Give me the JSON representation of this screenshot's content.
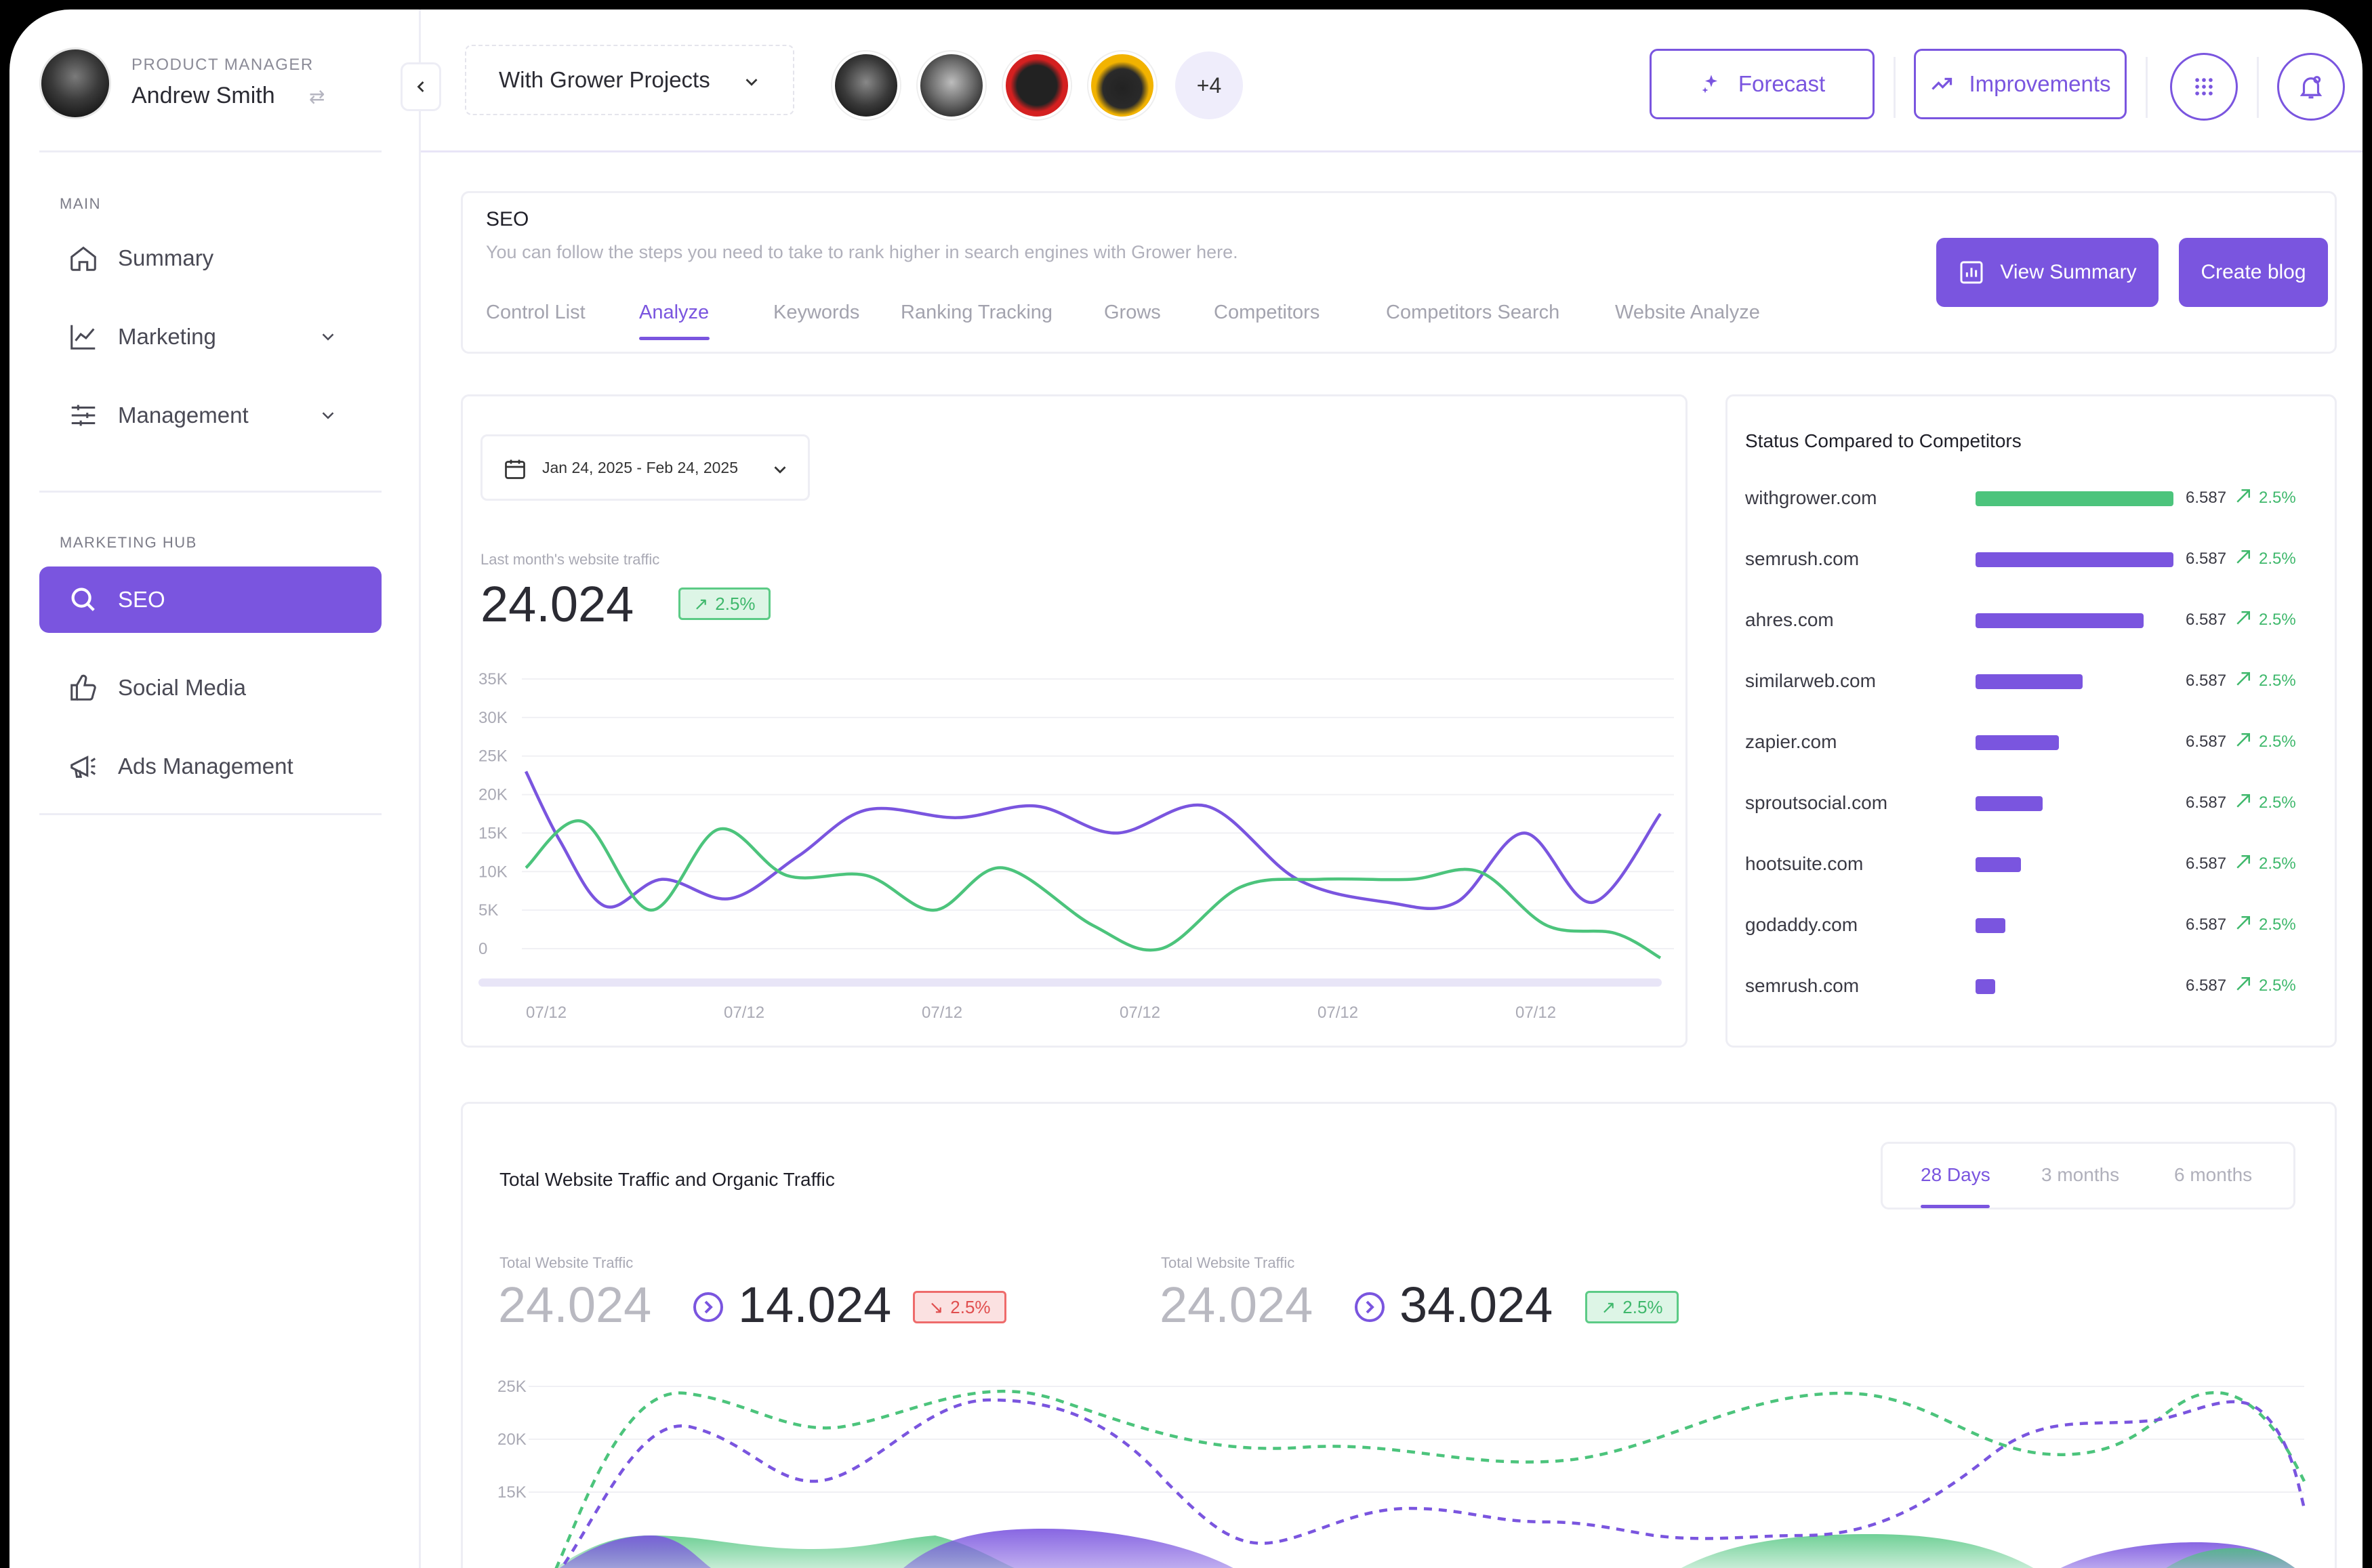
{
  "profile": {
    "role": "PRODUCT MANAGER",
    "name": "Andrew Smith"
  },
  "sidebar": {
    "main_label": "MAIN",
    "hub_label": "MARKETING HUB",
    "main_items": [
      {
        "label": "Summary",
        "icon": "home-icon"
      },
      {
        "label": "Marketing",
        "icon": "chart-line-icon"
      },
      {
        "label": "Management",
        "icon": "sliders-icon"
      }
    ],
    "hub_items": [
      {
        "label": "SEO",
        "icon": "search-icon",
        "active": true
      },
      {
        "label": "Social Media",
        "icon": "thumbs-up-icon"
      },
      {
        "label": "Ads Management",
        "icon": "megaphone-icon"
      }
    ]
  },
  "topbar": {
    "project": "With Grower Projects",
    "team_more": "+4",
    "forecast": "Forecast",
    "improvements": "Improvements"
  },
  "seo": {
    "title": "SEO",
    "description": "You can follow the steps you need to take to rank higher in search engines with Grower here.",
    "tabs": [
      "Control List",
      "Analyze",
      "Keywords",
      "Ranking Tracking",
      "Grows",
      "Competitors",
      "Competitors Search",
      "Website Analyze"
    ],
    "active_tab": "Analyze",
    "view_summary": "View Summary",
    "create_blog": "Create blog"
  },
  "traffic": {
    "date_range": "Jan 24, 2025 - Feb 24, 2025",
    "label": "Last month's website traffic",
    "value": "24.024",
    "badge": "2.5%"
  },
  "competitors": {
    "title": "Status Compared to Competitors",
    "rows": [
      {
        "name": "withgrower.com",
        "fill": 1.0,
        "value": "6.587",
        "pct": "2.5%"
      },
      {
        "name": "semrush.com",
        "fill": 1.0,
        "value": "6.587",
        "pct": "2.5%"
      },
      {
        "name": "ahres.com",
        "fill": 0.85,
        "value": "6.587",
        "pct": "2.5%"
      },
      {
        "name": "similarweb.com",
        "fill": 0.54,
        "value": "6.587",
        "pct": "2.5%"
      },
      {
        "name": "zapier.com",
        "fill": 0.42,
        "value": "6.587",
        "pct": "2.5%"
      },
      {
        "name": "sproutsocial.com",
        "fill": 0.34,
        "value": "6.587",
        "pct": "2.5%"
      },
      {
        "name": "hootsuite.com",
        "fill": 0.23,
        "value": "6.587",
        "pct": "2.5%"
      },
      {
        "name": "godaddy.com",
        "fill": 0.15,
        "value": "6.587",
        "pct": "2.5%"
      },
      {
        "name": "semrush.com",
        "fill": 0.1,
        "value": "6.587",
        "pct": "2.5%"
      }
    ]
  },
  "totals": {
    "title": "Total Website Traffic and Organic Traffic",
    "ranges": [
      "28 Days",
      "3 months",
      "6 months"
    ],
    "active_range": "28 Days",
    "left": {
      "label": "Total Website Traffic",
      "from": "24.024",
      "to": "14.024",
      "badge": "2.5%"
    },
    "right": {
      "label": "Total Website Traffic",
      "from": "24.024",
      "to": "34.024",
      "badge": "2.5%"
    }
  },
  "colors": {
    "accent": "#7A55DF",
    "green": "#4CC47C",
    "red": "#E04E4E"
  },
  "chart_data": [
    {
      "type": "line",
      "x": [
        "07/12",
        "07/12",
        "07/12",
        "07/12",
        "07/12",
        "07/12"
      ],
      "y_ticks": [
        "35K",
        "30K",
        "25K",
        "20K",
        "15K",
        "10K",
        "5K",
        "0"
      ],
      "ylim": [
        0,
        35000
      ],
      "series": [
        {
          "color": "#7A55DF",
          "points": [
            [
              0,
              23000
            ],
            [
              0.03,
              14000
            ],
            [
              0.07,
              5500
            ],
            [
              0.12,
              9000
            ],
            [
              0.18,
              6500
            ],
            [
              0.24,
              12000
            ],
            [
              0.3,
              18000
            ],
            [
              0.38,
              17000
            ],
            [
              0.45,
              18500
            ],
            [
              0.52,
              15000
            ],
            [
              0.6,
              18500
            ],
            [
              0.68,
              9000
            ],
            [
              0.76,
              6000
            ],
            [
              0.82,
              6000
            ],
            [
              0.88,
              15000
            ],
            [
              0.94,
              6000
            ],
            [
              1,
              17500
            ]
          ]
        },
        {
          "color": "#4CC47C",
          "points": [
            [
              0,
              10500
            ],
            [
              0.05,
              16500
            ],
            [
              0.11,
              5000
            ],
            [
              0.17,
              15500
            ],
            [
              0.23,
              9500
            ],
            [
              0.3,
              9500
            ],
            [
              0.36,
              5000
            ],
            [
              0.42,
              10500
            ],
            [
              0.5,
              3000
            ],
            [
              0.56,
              0
            ],
            [
              0.63,
              8000
            ],
            [
              0.7,
              9000
            ],
            [
              0.78,
              9000
            ],
            [
              0.84,
              10000
            ],
            [
              0.9,
              3000
            ],
            [
              0.96,
              2000
            ],
            [
              1,
              -1200
            ]
          ]
        }
      ]
    },
    {
      "type": "area",
      "y_ticks": [
        "25K",
        "20K",
        "15K"
      ],
      "ylim": [
        10000,
        25000
      ]
    }
  ]
}
